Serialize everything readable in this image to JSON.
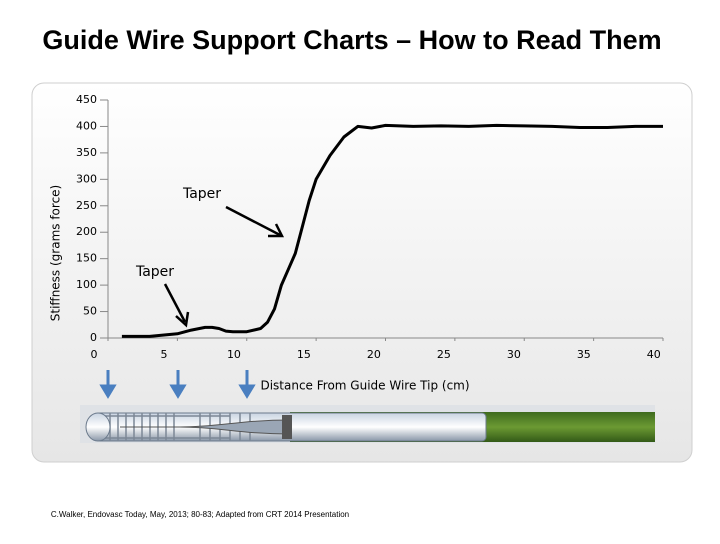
{
  "chart_data": {
    "type": "line",
    "title": "Guide Wire Support Charts – How to Read Them",
    "ylabel": "Stiffness (grams force)",
    "xlabel": "Distance From Guide Wire Tip (cm)",
    "annotations": [
      "Taper",
      "Taper"
    ],
    "citation": "C.Walker, Endovasc Today, May, 2013; 80-83; Adapted from CRT 2014 Presentation",
    "xlim": [
      0,
      40
    ],
    "xticks": [
      0,
      5,
      10,
      15,
      20,
      25,
      30,
      35,
      40
    ],
    "ylim": [
      0,
      450
    ],
    "yticks": [
      0,
      50,
      100,
      150,
      200,
      250,
      300,
      350,
      400,
      450
    ],
    "grid": false,
    "series": [
      {
        "color": "#000000",
        "x": [
          1,
          3,
          5,
          6,
          7,
          7.5,
          8,
          8.5,
          9,
          10,
          11,
          11.5,
          12,
          12.5,
          13,
          13.5,
          14,
          14.5,
          15,
          16,
          17,
          18,
          19,
          20,
          22,
          24,
          26,
          28,
          30,
          32,
          34,
          36,
          38,
          40
        ],
        "values": [
          3,
          3,
          8,
          15,
          20,
          20,
          18,
          13,
          12,
          12,
          18,
          30,
          55,
          100,
          130,
          160,
          210,
          260,
          300,
          345,
          380,
          400,
          397,
          402,
          400,
          401,
          400,
          402,
          401,
          400,
          398,
          398,
          400,
          400
        ]
      }
    ]
  }
}
